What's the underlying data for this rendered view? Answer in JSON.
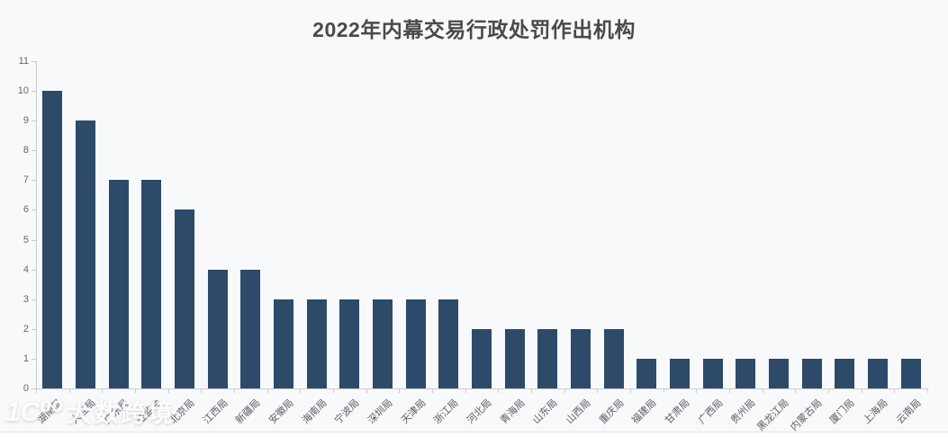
{
  "title": "2022年内幕交易行政处罚作出机构",
  "watermark": {
    "logo": "1C⁰⁰",
    "brand": "大数跨境"
  },
  "chart_data": {
    "type": "bar",
    "title": "2022年内幕交易行政处罚作出机构",
    "categories": [
      "湖南局",
      "大连局",
      "广东局",
      "证监会",
      "北京局",
      "江西局",
      "新疆局",
      "安徽局",
      "海南局",
      "宁波局",
      "深圳局",
      "天津局",
      "浙江局",
      "河北局",
      "青海局",
      "山东局",
      "山西局",
      "重庆局",
      "福建局",
      "甘肃局",
      "广西局",
      "贵州局",
      "黑龙江局",
      "内蒙古局",
      "厦门局",
      "上海局",
      "云南局"
    ],
    "values": [
      10,
      9,
      7,
      7,
      6,
      4,
      4,
      3,
      3,
      3,
      3,
      3,
      3,
      2,
      2,
      2,
      2,
      2,
      1,
      1,
      1,
      1,
      1,
      1,
      1,
      1,
      1
    ],
    "xlabel": "",
    "ylabel": "",
    "ylim": [
      0,
      11
    ],
    "y_ticks": [
      0,
      1,
      2,
      3,
      4,
      5,
      6,
      7,
      8,
      9,
      10,
      11
    ],
    "grid": false,
    "legend_position": "none",
    "x_label_rotation": 45,
    "bar_color": "#2d4a69",
    "background_color": "#f8f9fb",
    "axis_color": "#cccccc",
    "tick_label_color": "#666666"
  }
}
